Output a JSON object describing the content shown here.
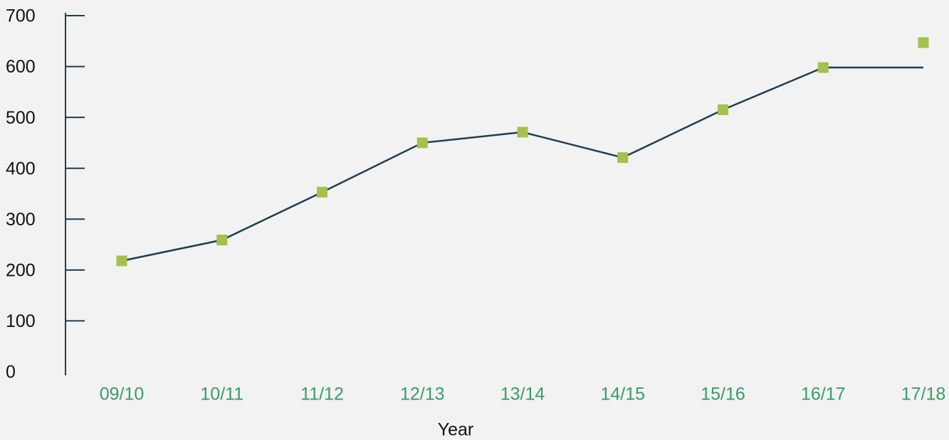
{
  "chart_data": {
    "type": "line",
    "x_label": "Year",
    "categories": [
      "09/10",
      "10/11",
      "11/12",
      "12/13",
      "13/14",
      "14/15",
      "15/16",
      "16/17",
      "17/18"
    ],
    "series": [
      {
        "color": "#1f3e4e",
        "style": "line",
        "values": [
          218,
          259,
          353,
          450,
          471,
          421,
          515,
          598,
          598
        ]
      },
      {
        "color": "#a5c04b",
        "style": "markers",
        "values": [
          218,
          259,
          353,
          450,
          471,
          421,
          515,
          598,
          647
        ]
      }
    ],
    "ylim": [
      0,
      700
    ],
    "yticks": [
      0,
      100,
      200,
      300,
      400,
      500,
      600,
      700
    ],
    "axis_color": "#1f3e4e",
    "category_label_color": "#3a9a6a"
  }
}
